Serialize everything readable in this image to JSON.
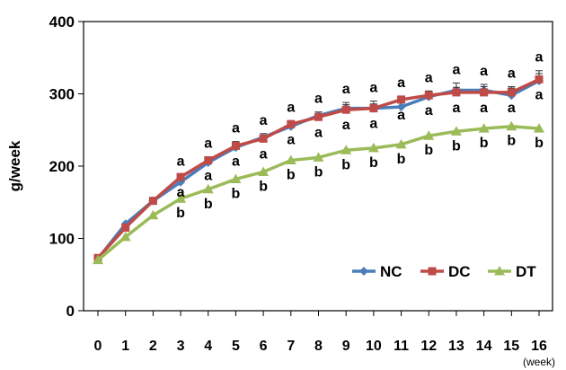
{
  "chart_data": {
    "type": "line",
    "x": [
      0,
      1,
      2,
      3,
      4,
      5,
      6,
      7,
      8,
      9,
      10,
      11,
      12,
      13,
      14,
      15,
      16
    ],
    "ylabel": "g/week",
    "x_unit": "(week)",
    "ylim": [
      0,
      400
    ],
    "yticks": [
      0,
      100,
      200,
      300,
      400
    ],
    "grid": false,
    "legend_position": "bottom-right",
    "series": [
      {
        "name": "NC",
        "color": "#4a7ebb",
        "marker": "diamond",
        "values": [
          72,
          120,
          152,
          178,
          205,
          226,
          240,
          255,
          270,
          280,
          280,
          282,
          296,
          305,
          305,
          298,
          318
        ],
        "error": [
          0,
          0,
          0,
          3,
          4,
          8,
          5,
          5,
          5,
          8,
          10,
          8,
          7,
          10,
          8,
          10,
          14
        ],
        "sig": [
          "",
          "",
          "",
          "a",
          "a",
          "a",
          "a",
          "a",
          "a",
          "a",
          "a",
          "a",
          "a",
          "a",
          "a",
          "a",
          "a"
        ]
      },
      {
        "name": "DC",
        "color": "#be4b48",
        "marker": "square",
        "values": [
          73,
          115,
          152,
          185,
          208,
          228,
          238,
          258,
          268,
          278,
          280,
          292,
          298,
          302,
          302,
          302,
          320
        ],
        "error": [
          0,
          0,
          0,
          3,
          5,
          5,
          5,
          5,
          5,
          7,
          6,
          5,
          6,
          7,
          8,
          8,
          8
        ],
        "sig": [
          "",
          "",
          "",
          "a",
          "a",
          "a",
          "a",
          "a",
          "a",
          "a",
          "a",
          "a",
          "a",
          "a",
          "a",
          "a",
          "a"
        ]
      },
      {
        "name": "DT",
        "color": "#9bbb59",
        "marker": "triangle",
        "values": [
          70,
          102,
          132,
          155,
          168,
          182,
          192,
          208,
          212,
          222,
          225,
          230,
          242,
          248,
          252,
          255,
          252
        ],
        "error": [
          0,
          0,
          0,
          0,
          0,
          0,
          0,
          0,
          0,
          0,
          0,
          0,
          0,
          0,
          0,
          0,
          0
        ],
        "sig": [
          "",
          "",
          "",
          "b",
          "b",
          "b",
          "b",
          "b",
          "b",
          "b",
          "b",
          "b",
          "b",
          "b",
          "b",
          "b",
          "b"
        ]
      }
    ]
  }
}
